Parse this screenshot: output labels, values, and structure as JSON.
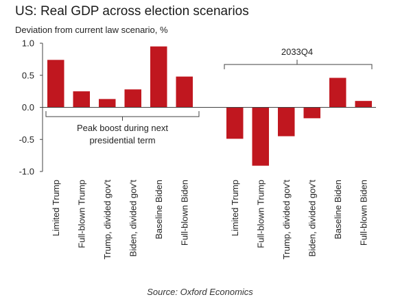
{
  "header": {
    "title": "US: Real GDP across election scenarios",
    "subtitle": "Deviation from current law scenario, %"
  },
  "source": "Source: Oxford Economics",
  "colors": {
    "bar": "#c0171f",
    "axis": "#404040",
    "bracket": "#404040"
  },
  "chart_data": {
    "type": "bar",
    "title": "US: Real GDP across election scenarios",
    "subtitle": "Deviation from current law scenario, %",
    "ylim": [
      -1.0,
      1.0
    ],
    "yticks": [
      -1.0,
      -0.5,
      0.0,
      0.5,
      1.0
    ],
    "ytick_labels": [
      "-1.0",
      "-0.5",
      "0.0",
      "0.5",
      "1.0"
    ],
    "grid": false,
    "groups": [
      {
        "annotation": "Peak boost during next presidential term",
        "annotation_lines": [
          "Peak boost during next",
          "presidential term"
        ],
        "categories": [
          "Limited Trump",
          "Full-blown Trump",
          "Trump, divided gov't",
          "Biden, divided gov't",
          "Baseline Biden",
          "Full-blown Biden"
        ],
        "values": [
          0.74,
          0.25,
          0.13,
          0.28,
          0.95,
          0.48
        ]
      },
      {
        "annotation": "2033Q4",
        "annotation_lines": [
          "2033Q4"
        ],
        "categories": [
          "Limited Trump",
          "Full-blown Trump",
          "Trump, divided gov't",
          "Biden, divided gov't",
          "Baseline Biden",
          "Full-blown Biden"
        ],
        "values": [
          -0.49,
          -0.91,
          -0.45,
          -0.17,
          0.46,
          0.1
        ]
      }
    ]
  }
}
